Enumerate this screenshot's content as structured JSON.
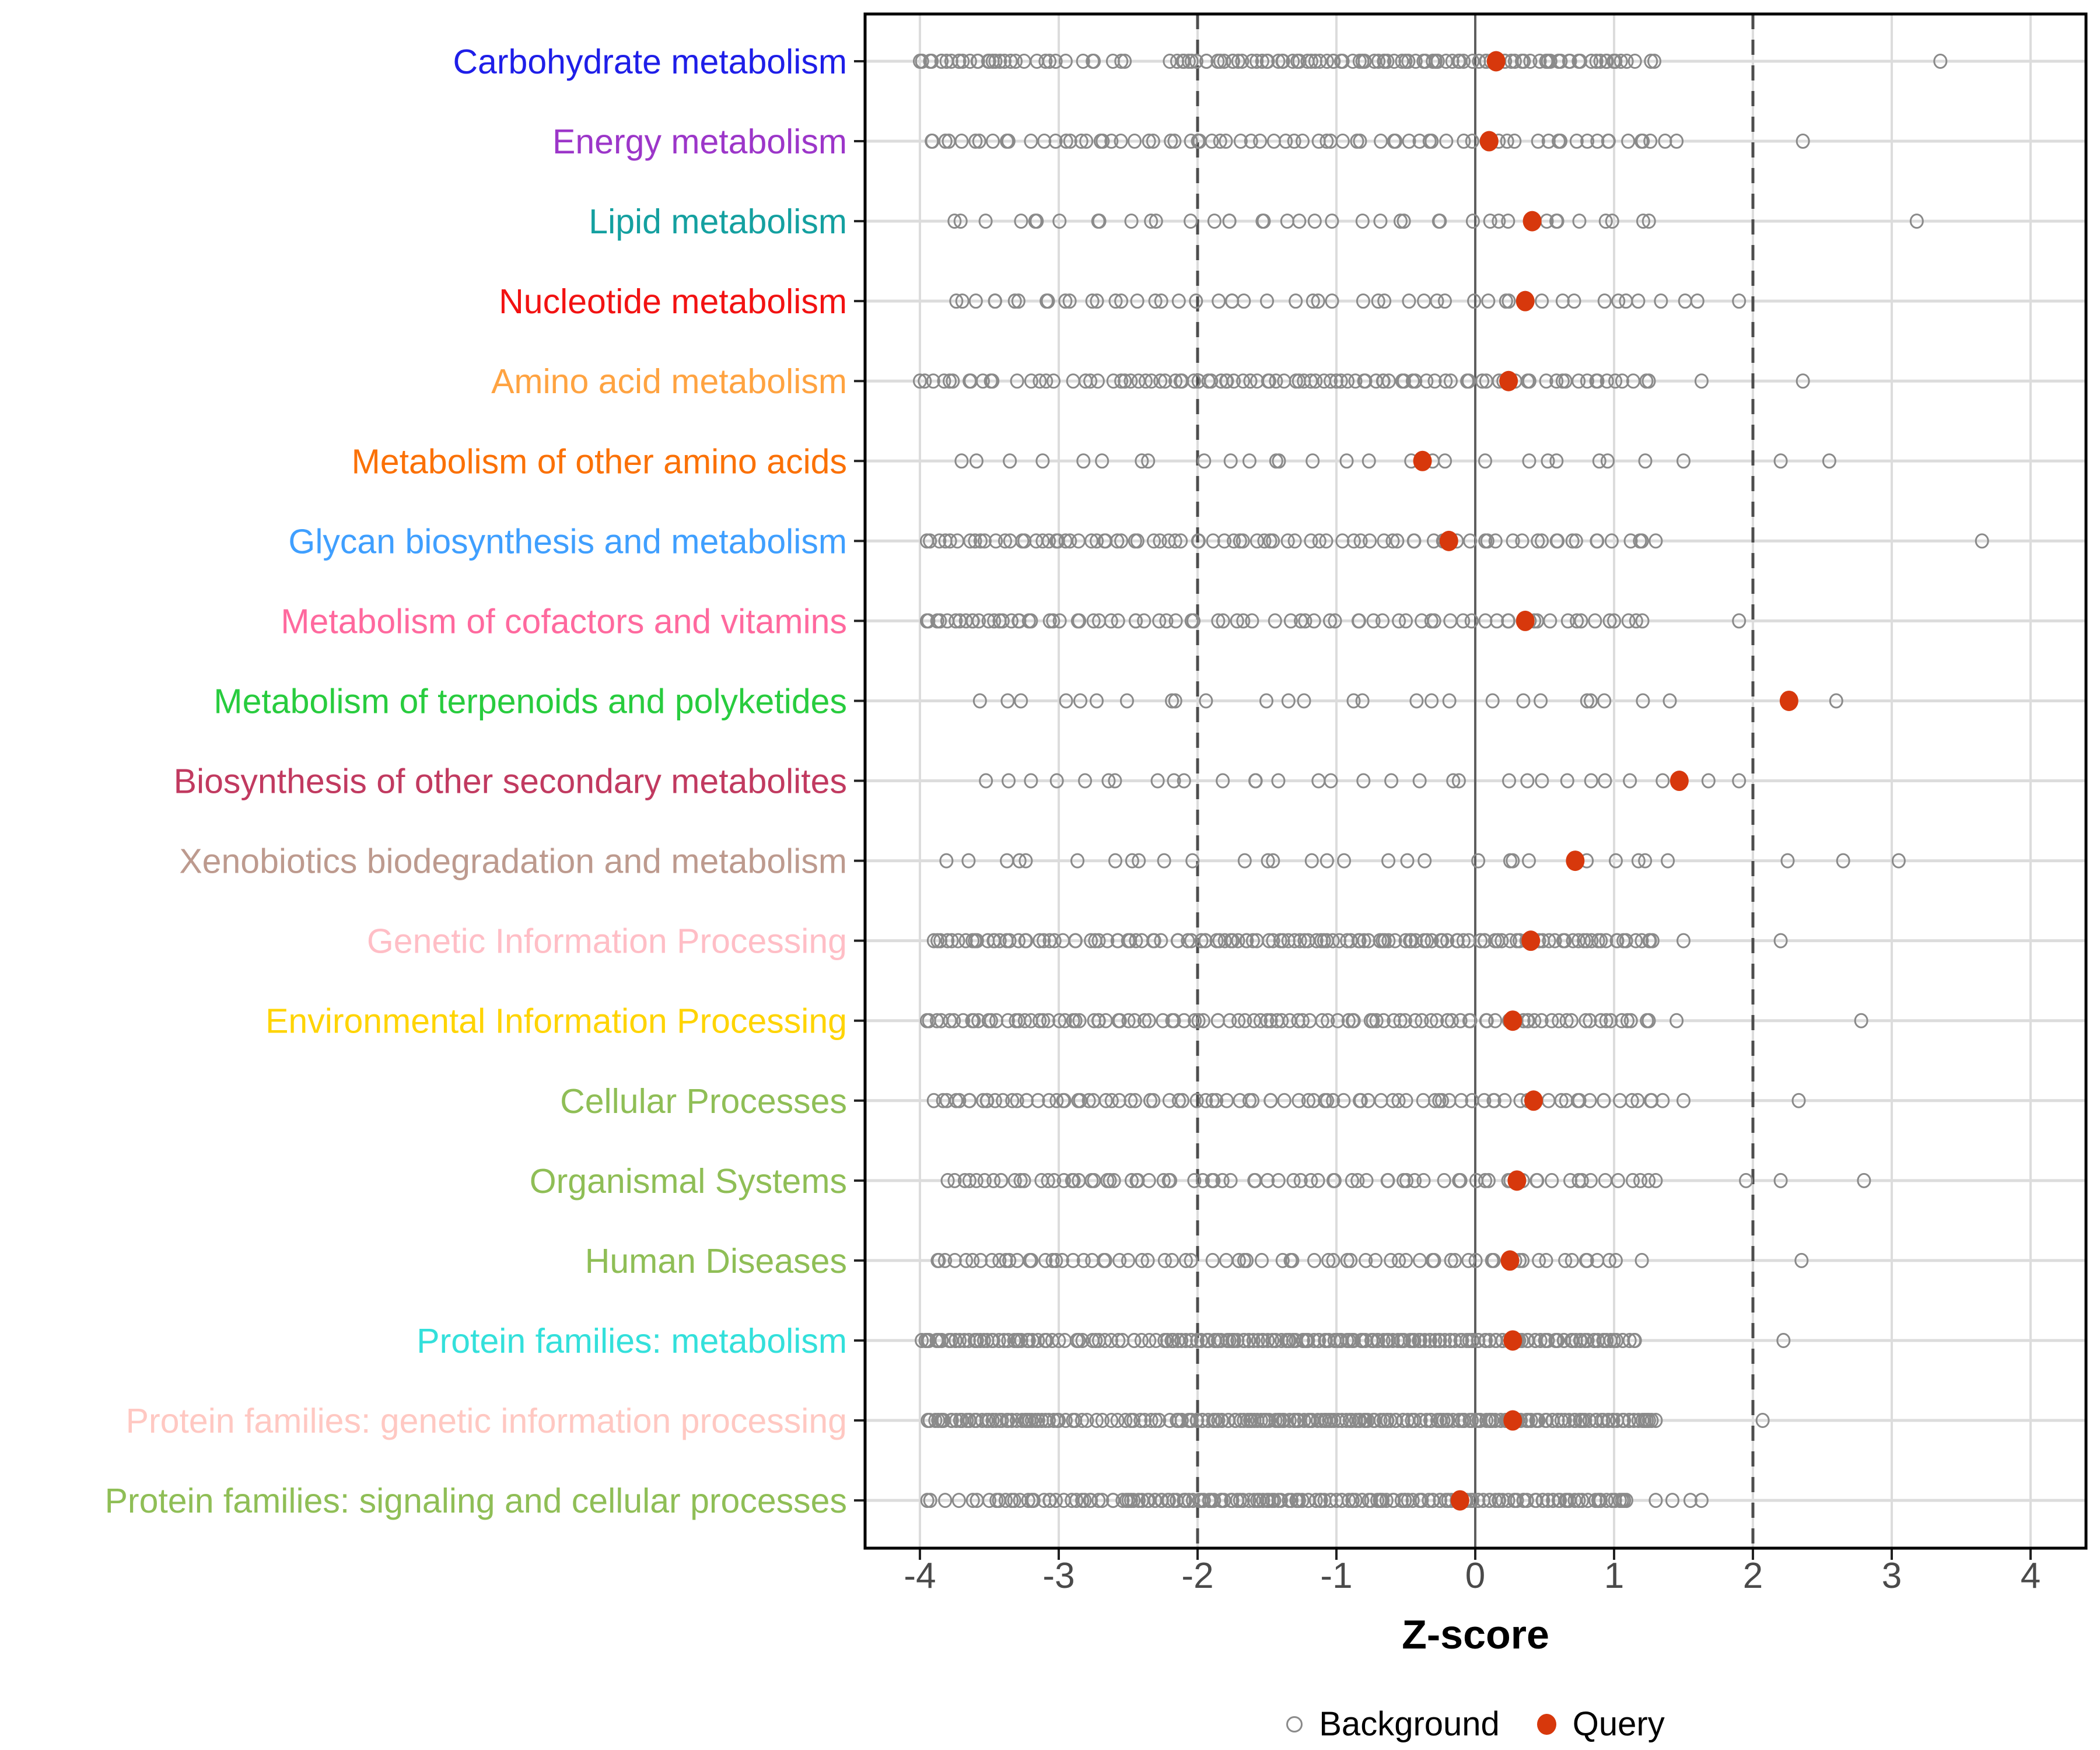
{
  "chart_data": {
    "type": "scatter",
    "subtype": "strip-plot",
    "title": "",
    "xlabel": "Z-score",
    "x_ticks": [
      -4,
      -3,
      -2,
      -1,
      0,
      1,
      2,
      3,
      4
    ],
    "x_tick_labels": [
      "-4",
      "-3",
      "-2",
      "-1",
      "0",
      "1",
      "2",
      "3",
      "4"
    ],
    "xlim": [
      -4.4,
      4.4
    ],
    "zero_line": 0,
    "thresholds": [
      -2,
      2
    ],
    "grid": true,
    "legend_position": "bottom",
    "legend": [
      {
        "label": "Background",
        "marker": "open-circle",
        "color": "#8A8A8A"
      },
      {
        "label": "Query",
        "marker": "filled-circle",
        "color": "#D7380C"
      }
    ],
    "style": {
      "grid_color": "#DCDCDC",
      "zero_line_color": "#5E5E5E",
      "threshold_color": "#4D4D4D",
      "panel_border_color": "#000000",
      "tick_color": "#222222",
      "tick_label_color": "#4A4A4A",
      "background_point_color": "#8A8A8A",
      "query_point_color": "#D7380C"
    },
    "categories": [
      {
        "label": "Carbohydrate metabolism",
        "color": "#1E1EE8",
        "query": 0.15,
        "background": {
          "segments": [
            [
              -4.0,
              -3.3,
              22
            ],
            [
              -3.25,
              -2.5,
              12
            ],
            [
              -2.2,
              1.1,
              92
            ],
            [
              1.15,
              1.32,
              3
            ]
          ],
          "outliers": [
            3.35
          ]
        }
      },
      {
        "label": "Energy metabolism",
        "color": "#9C36C9",
        "query": 0.1,
        "background": {
          "segments": [
            [
              -3.95,
              -3.35,
              10
            ],
            [
              -3.2,
              -2.45,
              12
            ],
            [
              -2.35,
              -1.55,
              13
            ],
            [
              -1.45,
              1.45,
              40
            ]
          ],
          "outliers": [
            2.36
          ]
        }
      },
      {
        "label": "Lipid metabolism",
        "color": "#14A0A0",
        "query": 0.41,
        "background": {
          "segments": [
            [
              -3.8,
              -2.05,
              13
            ],
            [
              -1.95,
              1.3,
              27
            ]
          ],
          "outliers": [
            3.18
          ]
        }
      },
      {
        "label": "Nucleotide metabolism",
        "color": "#F21212",
        "query": 0.36,
        "background": {
          "segments": [
            [
              -3.75,
              -2.55,
              15
            ],
            [
              -2.45,
              -1.5,
              10
            ],
            [
              -1.35,
              1.6,
              26
            ]
          ],
          "outliers": [
            1.9
          ]
        }
      },
      {
        "label": "Amino acid metabolism",
        "color": "#FFA341",
        "query": 0.24,
        "background": {
          "segments": [
            [
              -4.0,
              -3.45,
              11
            ],
            [
              -3.3,
              -2.6,
              10
            ],
            [
              -2.55,
              -0.5,
              46
            ],
            [
              -0.45,
              1.25,
              30
            ]
          ],
          "outliers": [
            1.63,
            2.36
          ]
        }
      },
      {
        "label": "Metabolism of other amino acids",
        "color": "#FB7106",
        "query": -0.38,
        "background": {
          "segments": [
            [
              -3.7,
              1.5,
              27
            ]
          ],
          "outliers": [
            2.2,
            2.55
          ]
        }
      },
      {
        "label": "Glycan biosynthesis and metabolism",
        "color": "#3F9FFF",
        "query": -0.19,
        "background": {
          "segments": [
            [
              -3.95,
              -3.35,
              13
            ],
            [
              -3.3,
              -2.55,
              16
            ],
            [
              -2.45,
              -1.35,
              19
            ],
            [
              -1.3,
              1.3,
              36
            ]
          ],
          "outliers": [
            3.65
          ]
        }
      },
      {
        "label": "Metabolism of cofactors and vitamins",
        "color": "#FF699E",
        "query": 0.36,
        "background": {
          "segments": [
            [
              -3.95,
              -3.2,
              20
            ],
            [
              -3.1,
              -2.35,
              12
            ],
            [
              -2.3,
              -0.55,
              22
            ],
            [
              -0.5,
              1.25,
              24
            ]
          ],
          "outliers": [
            1.9
          ]
        }
      },
      {
        "label": "Metabolism of terpenoids and polyketides",
        "color": "#28CC3E",
        "query": 2.26,
        "background": {
          "segments": [
            [
              -3.7,
              1.5,
              26
            ]
          ],
          "outliers": [
            2.6
          ]
        }
      },
      {
        "label": "Biosynthesis of other secondary metabolites",
        "color": "#C13A60",
        "query": 1.47,
        "background": {
          "segments": [
            [
              -3.6,
              1.35,
              29
            ]
          ],
          "outliers": [
            1.68,
            1.9
          ]
        }
      },
      {
        "label": "Xenobiotics biodegradation and metabolism",
        "color": "#BD9A8E",
        "query": 0.72,
        "background": {
          "segments": [
            [
              -3.85,
              1.45,
              29
            ]
          ],
          "outliers": [
            2.25,
            2.65,
            3.05
          ]
        }
      },
      {
        "label": "Genetic Information Processing",
        "color": "#FFBEC6",
        "query": 0.4,
        "background": {
          "segments": [
            [
              -3.9,
              -3.35,
              16
            ],
            [
              -3.3,
              -2.65,
              14
            ],
            [
              -2.6,
              -2.25,
              9
            ],
            [
              -2.15,
              1.3,
              92
            ]
          ],
          "outliers": [
            1.5,
            2.2
          ]
        }
      },
      {
        "label": "Environmental Information Processing",
        "color": "#FFD400",
        "query": 0.27,
        "background": {
          "segments": [
            [
              -3.95,
              -3.2,
              18
            ],
            [
              -3.15,
              -2.35,
              18
            ],
            [
              -2.25,
              1.25,
              68
            ]
          ],
          "outliers": [
            1.45,
            2.78
          ]
        }
      },
      {
        "label": "Cellular Processes",
        "color": "#8FBE56",
        "query": 0.42,
        "background": {
          "segments": [
            [
              -3.9,
              -3.3,
              14
            ],
            [
              -3.25,
              -2.45,
              16
            ],
            [
              -2.35,
              1.35,
              58
            ]
          ],
          "outliers": [
            1.5,
            2.33
          ]
        }
      },
      {
        "label": "Organismal Systems",
        "color": "#8FBE56",
        "query": 0.3,
        "background": {
          "segments": [
            [
              -3.8,
              -3.25,
              12
            ],
            [
              -3.15,
              -2.35,
              16
            ],
            [
              -2.3,
              1.3,
              50
            ]
          ],
          "outliers": [
            1.95,
            2.2,
            2.8
          ]
        }
      },
      {
        "label": "Human Diseases",
        "color": "#8FBE56",
        "query": 0.25,
        "background": {
          "segments": [
            [
              -3.9,
              -3.3,
              12
            ],
            [
              -3.25,
              -2.5,
              13
            ],
            [
              -2.4,
              -0.55,
              24
            ],
            [
              -0.5,
              1.05,
              22
            ]
          ],
          "outliers": [
            1.2,
            2.35
          ]
        }
      },
      {
        "label": "Protein families: metabolism",
        "color": "#33E0DB",
        "query": 0.27,
        "background": {
          "segments": [
            [
              -4.0,
              -3.15,
              32
            ],
            [
              -3.1,
              -2.3,
              20
            ],
            [
              -2.25,
              1.15,
              145
            ]
          ],
          "outliers": [
            2.22
          ]
        }
      },
      {
        "label": "Protein families: genetic information processing",
        "color": "#FFC8C2",
        "query": 0.27,
        "background": {
          "segments": [
            [
              -3.95,
              -3.0,
              42
            ],
            [
              -2.95,
              -2.2,
              18
            ],
            [
              -2.15,
              1.3,
              155
            ]
          ],
          "outliers": [
            2.07
          ]
        }
      },
      {
        "label": "Protein families: signaling and cellular processes",
        "color": "#8FBE56",
        "query": -0.11,
        "background": {
          "segments": [
            [
              -3.95,
              -3.5,
              7
            ],
            [
              -3.45,
              -2.6,
              24
            ],
            [
              -2.55,
              1.1,
              145
            ]
          ],
          "outliers": [
            1.3,
            1.42,
            1.55,
            1.63
          ]
        }
      }
    ]
  }
}
